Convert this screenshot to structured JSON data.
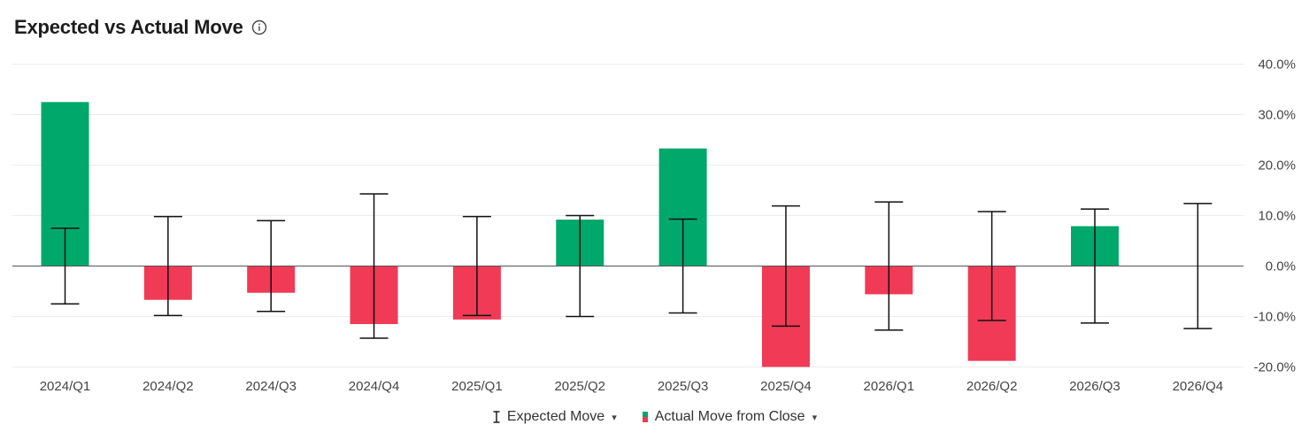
{
  "header": {
    "title": "Expected vs Actual Move"
  },
  "icons": {
    "info": "info-icon",
    "dropdown": "caret-down-icon"
  },
  "colors": {
    "positive": "#00a86b",
    "negative": "#f03a56",
    "error_bar": "#111111",
    "grid": "#ececec",
    "zero_line": "#555555"
  },
  "legend": {
    "items": [
      {
        "label": "Expected Move",
        "icon": "error-bar-icon"
      },
      {
        "label": "Actual Move from Close",
        "icon": "bar-swatch-icon"
      }
    ],
    "caret": "▾"
  },
  "chart_data": {
    "type": "bar",
    "title": "Expected vs Actual Move",
    "categories": [
      "2024/Q1",
      "2024/Q2",
      "2024/Q3",
      "2024/Q4",
      "2025/Q1",
      "2025/Q2",
      "2025/Q3",
      "2025/Q4",
      "2026/Q1",
      "2026/Q2",
      "2026/Q3",
      "2026/Q4"
    ],
    "series": [
      {
        "name": "Actual Move from Close",
        "type": "bar",
        "values": [
          32.5,
          -6.7,
          -5.3,
          -11.5,
          -10.6,
          9.2,
          23.3,
          -20.0,
          -5.6,
          -18.8,
          7.9,
          null
        ]
      },
      {
        "name": "Expected Move",
        "type": "error_bar",
        "values": [
          7.5,
          9.8,
          9.0,
          14.3,
          9.8,
          10.0,
          9.3,
          11.9,
          12.7,
          10.8,
          11.3,
          12.4
        ]
      }
    ],
    "y_axis": {
      "min": -20,
      "max": 40,
      "ticks": [
        40,
        30,
        20,
        10,
        0,
        -10,
        -20
      ],
      "format": "percent",
      "position": "right"
    },
    "tick_labels": [
      "40.0%",
      "30.0%",
      "20.0%",
      "10.0%",
      "0.0%",
      "-10.0%",
      "-20.0%"
    ],
    "grid": true,
    "legend_position": "bottom-center"
  }
}
